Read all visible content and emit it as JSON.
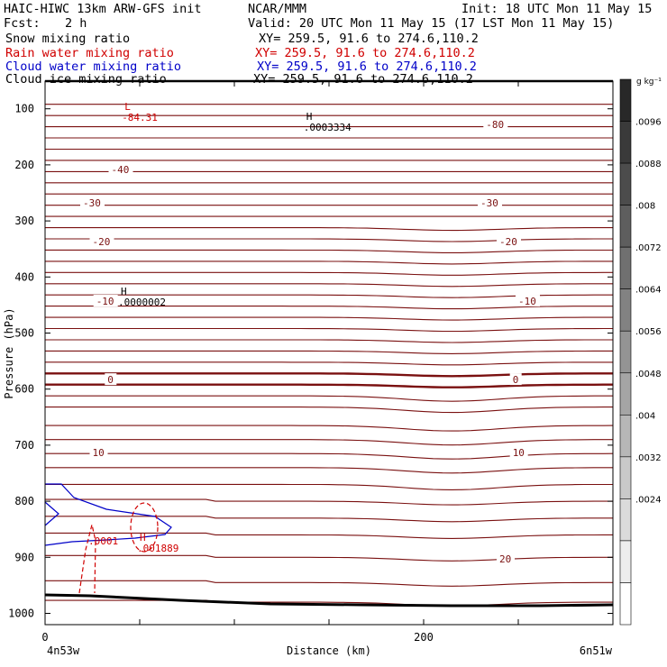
{
  "header": {
    "model": "HAIC-HIWC 13km ARW-GFS init",
    "org": "NCAR/MMM",
    "init": "Init: 18 UTC Mon 11 May 15",
    "fcst_label": "Fcst:",
    "fcst_value": "2 h",
    "valid": "Valid: 20 UTC Mon 11 May 15 (17 LST Mon 11 May 15)"
  },
  "fields": [
    {
      "name": "Snow mixing ratio",
      "xy": "XY= 259.5, 91.6 to 274.6,110.2",
      "color": "#000000"
    },
    {
      "name": "Rain water mixing ratio",
      "xy": "XY= 259.5, 91.6 to 274.6,110.2",
      "color": "#d00000"
    },
    {
      "name": "Cloud water mixing ratio",
      "xy": "XY= 259.5, 91.6 to 274.6,110.2",
      "color": "#0000c8"
    },
    {
      "name": "Cloud ice mixing ratio",
      "xy": "XY= 259.5, 91.6 to 274.6,110.2",
      "color": "#000000"
    }
  ],
  "chart_data": {
    "type": "contour",
    "ylabel": "Pressure (hPa)",
    "xlabel": "Distance (km)",
    "x_ticks": [
      "0",
      "200"
    ],
    "y_ticks": [
      "100",
      "200",
      "300",
      "400",
      "500",
      "600",
      "700",
      "800",
      "900",
      "1000"
    ],
    "xlim": [
      0,
      300
    ],
    "ylim": [
      1050,
      50
    ],
    "x_start_label": "4n53w",
    "x_end_label": "6n51w",
    "colorbar": {
      "unit_label": "g kg⁻¹",
      "ticks": [
        ".0096",
        ".0088",
        ".008",
        ".0072",
        ".0064",
        ".0056",
        ".0048",
        ".004",
        ".0032",
        ".0024"
      ]
    },
    "temperature_contours": [
      {
        "label": "-80",
        "p": 128,
        "x": 233
      },
      {
        "label": "-40",
        "p": 208,
        "x": 35
      },
      {
        "label": "-30",
        "p": 268,
        "x": 20
      },
      {
        "label": "-30",
        "p": 268,
        "x": 230
      },
      {
        "label": "-20",
        "p": 337,
        "x": 25
      },
      {
        "label": "-20",
        "p": 337,
        "x": 240
      },
      {
        "label": "-10",
        "p": 443,
        "x": 27
      },
      {
        "label": "-10",
        "p": 443,
        "x": 250
      },
      {
        "label": "0",
        "p": 583,
        "x": 33
      },
      {
        "label": "0",
        "p": 583,
        "x": 247
      },
      {
        "label": "10",
        "p": 713,
        "x": 25
      },
      {
        "label": "10",
        "p": 713,
        "x": 247
      },
      {
        "label": "20",
        "p": 903,
        "x": 240
      }
    ],
    "extrema": [
      {
        "kind": "L",
        "value": "-84.31",
        "p": 110,
        "x": 42,
        "color": "#d00000"
      },
      {
        "kind": "H",
        "value": ".0003334",
        "p": 128,
        "x": 138,
        "color": "#000000"
      },
      {
        "kind": "H",
        "value": ".0000002",
        "p": 440,
        "x": 40,
        "color": "#000000"
      },
      {
        "kind": "H",
        "value": ".001889",
        "p": 879,
        "x": 50,
        "color": "#d00000"
      }
    ],
    "cloud_water_label": ".0001"
  }
}
